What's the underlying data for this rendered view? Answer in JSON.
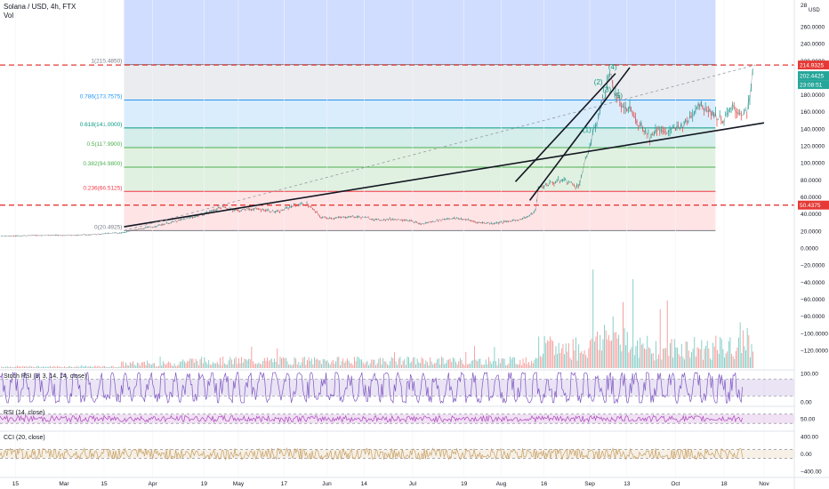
{
  "header": {
    "title": "Solana / USD, 4h, FTX",
    "vol_label": "Vol"
  },
  "chart_data": {
    "type": "candlestick",
    "symbol": "Solana / USD",
    "timeframe": "4h",
    "exchange": "FTX",
    "price_axis": {
      "unit": "USD",
      "ylim": [
        -130,
        285
      ],
      "top_partial_label": "28",
      "ticks": [
        "260.0000",
        "240.0000",
        "220.0000",
        "200.0000",
        "180.0000",
        "160.0000",
        "140.0000",
        "120.0000",
        "100.0000",
        "80.0000",
        "60.0000",
        "40.0000",
        "20.0000",
        "0.0000",
        "−20.0000",
        "−40.0000",
        "−60.0000",
        "−80.0000",
        "−100.0000",
        "−120.0000"
      ],
      "tick_values": [
        260,
        240,
        220,
        200,
        180,
        160,
        140,
        120,
        100,
        80,
        60,
        40,
        20,
        0,
        -20,
        -40,
        -60,
        -80,
        -100,
        -120
      ]
    },
    "price_badges": [
      {
        "value": 214.9325,
        "label": "214.9325",
        "color": "#e53935"
      },
      {
        "value": 202.4425,
        "label": "202.4425",
        "color": "#26a69a"
      },
      {
        "value": 192.0,
        "label": "23:08:51",
        "color": "#26a69a"
      },
      {
        "value": 50.4375,
        "label": "50.4375",
        "color": "#e53935"
      }
    ],
    "time_axis": {
      "ticks": [
        "15",
        "Mar",
        "15",
        "Apr",
        "19",
        "May",
        "17",
        "Jun",
        "14",
        "Jul",
        "19",
        "Aug",
        "16",
        "Sep",
        "13",
        "Oct",
        "18",
        "Nov"
      ],
      "tick_days": [
        -17,
        0,
        14,
        31,
        49,
        61,
        77,
        92,
        105,
        122,
        140,
        153,
        168,
        184,
        197,
        214,
        231,
        245
      ]
    },
    "price_series": {
      "description": "approximate close prices (USD), day offset from Mar 1",
      "days": [
        -70,
        -50,
        -40,
        -30,
        -20,
        -10,
        0,
        10,
        20,
        31,
        40,
        49,
        55,
        61,
        65,
        70,
        75,
        80,
        85,
        90,
        95,
        100,
        105,
        110,
        115,
        120,
        125,
        130,
        135,
        140,
        145,
        150,
        155,
        160,
        163,
        165,
        166,
        170,
        175,
        180,
        184,
        187,
        190,
        191,
        192,
        194,
        196,
        198,
        200,
        202,
        205,
        208,
        210,
        214,
        218,
        222,
        226,
        228,
        231,
        234,
        236,
        239,
        240,
        241
      ],
      "close": [
        5,
        8,
        12,
        14,
        14,
        15,
        15,
        16,
        18,
        25,
        32,
        40,
        48,
        44,
        46,
        45,
        42,
        50,
        52,
        36,
        35,
        37,
        36,
        33,
        34,
        33,
        28,
        32,
        35,
        34,
        30,
        29,
        31,
        34,
        38,
        44,
        70,
        76,
        80,
        72,
        120,
        155,
        190,
        208,
        190,
        175,
        160,
        165,
        150,
        145,
        130,
        142,
        135,
        140,
        148,
        170,
        162,
        155,
        150,
        165,
        160,
        158,
        175,
        205
      ]
    },
    "fibonacci": {
      "levels": [
        {
          "ratio_label": "1(215.4850)",
          "price": 215.485,
          "color": "#787b86"
        },
        {
          "ratio_label": "0.786(173.7575)",
          "price": 173.7575,
          "color": "#2196f3"
        },
        {
          "ratio_label": "0.618(141.0000)",
          "price": 141.0,
          "color": "#089981"
        },
        {
          "ratio_label": "0.5(117.9900)",
          "price": 117.99,
          "color": "#4caf50"
        },
        {
          "ratio_label": "0.382(94.9800)",
          "price": 94.98,
          "color": "#4caf50"
        },
        {
          "ratio_label": "0.236(66.5125)",
          "price": 66.5125,
          "color": "#f23645"
        },
        {
          "ratio_label": "0(20.4925)",
          "price": 20.4925,
          "color": "#787b86"
        }
      ],
      "day_range": [
        21,
        228
      ]
    },
    "horizontal_lines": [
      {
        "price": 214.9325,
        "style": "dashed",
        "color": "#e53935"
      },
      {
        "price": 50.4375,
        "style": "dashed",
        "color": "#e53935"
      }
    ],
    "trend_lines": [
      {
        "from": [
          21,
          25
        ],
        "to": [
          245,
          147
        ],
        "style": "solid",
        "color": "#131722"
      },
      {
        "from": [
          21,
          20.5
        ],
        "to": [
          242,
          215
        ],
        "style": "dashed",
        "color": "#9598a1"
      },
      {
        "from": [
          158,
          78
        ],
        "to": [
          193,
          205
        ],
        "style": "solid",
        "color": "#131722"
      },
      {
        "from": [
          163,
          56
        ],
        "to": [
          198,
          212
        ],
        "style": "solid",
        "color": "#131722"
      }
    ],
    "wave_labels": [
      {
        "text": "(1)",
        "day": 183,
        "price": 136
      },
      {
        "text": "(2)",
        "day": 187,
        "price": 192
      },
      {
        "text": "(3)",
        "day": 190,
        "price": 183
      },
      {
        "text": "(4)",
        "day": 192,
        "price": 210
      },
      {
        "text": "(5)",
        "day": 194,
        "price": 176
      }
    ],
    "highlight_zone": {
      "day_range": [
        21,
        228
      ],
      "price_range": [
        215.485,
        285
      ],
      "color": "#5b86ff"
    },
    "indicators": [
      {
        "name": "Stoch RSI (3, 3, 14, 14, close)",
        "color": "#7e57c2",
        "band": [
          20,
          80
        ],
        "ticks": [
          "100.00",
          "0.00"
        ],
        "tick_values": [
          100,
          0
        ]
      },
      {
        "name": "RSI (14, close)",
        "color": "#ab47bc",
        "band": [
          30,
          70
        ],
        "ticks": [
          "50.00"
        ],
        "tick_values": [
          50
        ],
        "last_value": 75
      },
      {
        "name": "CCI (20, close)",
        "color": "#c8a165",
        "band": [
          -100,
          100
        ],
        "ticks": [
          "400.00",
          "0.00",
          "−400.00"
        ],
        "tick_values": [
          400,
          0,
          -400
        ]
      }
    ]
  }
}
